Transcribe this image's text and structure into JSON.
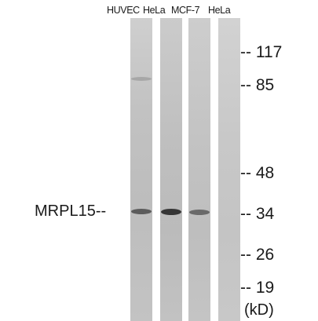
{
  "lane_labels": [
    "HUVEC",
    "HeLa",
    "MCF-7",
    "HeLa"
  ],
  "protein_label": "MRPL15--",
  "markers": [
    {
      "label": "-- 117",
      "kd": 117
    },
    {
      "label": "-- 85",
      "kd": 85
    },
    {
      "label": "-- 48",
      "kd": 48
    },
    {
      "label": "-- 34",
      "kd": 34
    },
    {
      "label": "-- 26",
      "kd": 26
    },
    {
      "label": "-- 19",
      "kd": 19
    }
  ],
  "unit_label": "(kD)",
  "colors": {
    "background": "#ffffff",
    "lane": "#c4c4c4",
    "band": "#333333",
    "text": "#1a1a1a"
  }
}
